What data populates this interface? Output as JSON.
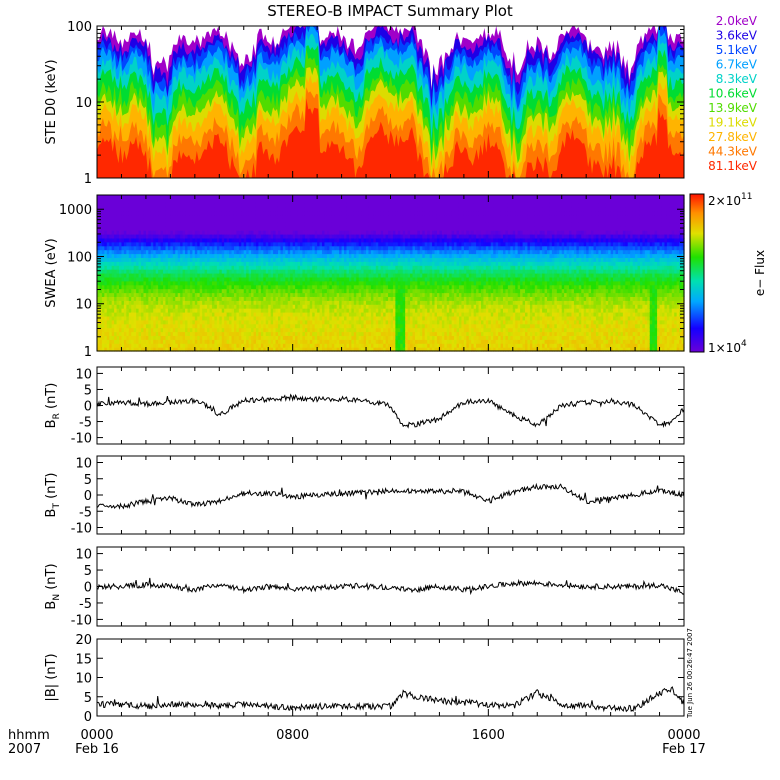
{
  "title": "STEREO-B IMPACT Summary Plot",
  "timestamp": "Tue Jun 26 00:26:47 2007",
  "colorbar": {
    "label": "e− Flux",
    "max_label": "2×10",
    "max_exp": "11",
    "min_label": "1×10",
    "min_exp": "4"
  },
  "x_axis": {
    "row1_label": "hhmm",
    "row2_label": "2007",
    "ticks": [
      "0000",
      "0800",
      "1600",
      "0000"
    ],
    "dates": [
      "Feb 16",
      "",
      "",
      "Feb 17"
    ]
  },
  "chart_data": [
    {
      "type": "line",
      "ylabel": "STE D0 (keV)",
      "yscale": "log",
      "ylim": [
        1,
        100
      ],
      "yticks": [
        "1",
        "10",
        "100"
      ],
      "series": [
        {
          "name": "2.0keV",
          "color": "#a000c8",
          "typical": 60
        },
        {
          "name": "3.6keV",
          "color": "#1e00e6",
          "typical": 48
        },
        {
          "name": "5.1keV",
          "color": "#0046ff",
          "typical": 38
        },
        {
          "name": "6.7keV",
          "color": "#00a0ff",
          "typical": 30
        },
        {
          "name": "8.3keV",
          "color": "#00d2c8",
          "typical": 22
        },
        {
          "name": "10.6keV",
          "color": "#00dc32",
          "typical": 15
        },
        {
          "name": "13.9keV",
          "color": "#50dc00",
          "typical": 10
        },
        {
          "name": "19.1keV",
          "color": "#dcdc00",
          "typical": 7
        },
        {
          "name": "27.8keV",
          "color": "#ffb400",
          "typical": 5
        },
        {
          "name": "44.3keV",
          "color": "#ff7800",
          "typical": 3
        },
        {
          "name": "81.1keV",
          "color": "#ff2800",
          "typical": 1.8
        }
      ]
    },
    {
      "type": "heatmap",
      "ylabel": "SWEA (eV)",
      "yscale": "log",
      "ylim": [
        1,
        2000
      ],
      "yticks": [
        "1",
        "10",
        "100",
        "1000"
      ],
      "zscale": "log",
      "zlim": [
        10000,
        200000000000
      ]
    },
    {
      "type": "line",
      "ylabel": "B_R (nT)",
      "ylim": [
        -12,
        12
      ],
      "yticks": [
        "-10",
        "-5",
        "0",
        "5",
        "10"
      ],
      "x": [
        0,
        1,
        2,
        3,
        4,
        4.5,
        5,
        6,
        7,
        8,
        9,
        10,
        11,
        12,
        12.5,
        13,
        14,
        15,
        16,
        17,
        18,
        19,
        20,
        21,
        22,
        23,
        23.5,
        24
      ],
      "values": [
        0.5,
        1,
        0.5,
        1,
        1.5,
        0,
        -3,
        1.5,
        2,
        2.5,
        2,
        2,
        1.5,
        0,
        -6,
        -6,
        -4,
        1,
        1.5,
        -3,
        -6,
        0,
        1,
        1.5,
        0,
        -6,
        -5,
        -1
      ]
    },
    {
      "type": "line",
      "ylabel": "B_T (nT)",
      "ylim": [
        -12,
        12
      ],
      "yticks": [
        "-10",
        "-5",
        "0",
        "5",
        "10"
      ],
      "x": [
        0,
        1,
        2,
        3,
        4,
        5,
        6,
        7,
        8,
        9,
        10,
        11,
        12,
        13,
        14,
        15,
        16,
        17,
        18,
        19,
        20,
        21,
        22,
        23,
        24
      ],
      "values": [
        -3,
        -3.5,
        -2,
        -1,
        -3,
        -2,
        0.5,
        0.5,
        -0.5,
        0,
        0.5,
        0.8,
        1.5,
        1,
        1,
        1.5,
        -2,
        1,
        2.5,
        2.5,
        -2,
        -1,
        0,
        1.5,
        0
      ]
    },
    {
      "type": "line",
      "ylabel": "B_N (nT)",
      "ylim": [
        -12,
        12
      ],
      "yticks": [
        "-10",
        "-5",
        "0",
        "5",
        "10"
      ],
      "x": [
        0,
        1,
        2,
        3,
        4,
        5,
        6,
        7,
        8,
        9,
        10,
        11,
        12,
        13,
        14,
        15,
        16,
        17,
        18,
        19,
        20,
        21,
        22,
        23,
        24
      ],
      "values": [
        0,
        0,
        0.5,
        0,
        -1,
        0.5,
        -1,
        0,
        -1,
        -0.5,
        0,
        0.5,
        -0.5,
        -1,
        0,
        -1,
        0,
        1,
        1,
        0.5,
        0,
        0,
        0,
        0.5,
        -2
      ]
    },
    {
      "type": "line",
      "ylabel": "|B| (nT)",
      "ylim": [
        0,
        20
      ],
      "yticks": [
        "0",
        "5",
        "10",
        "15",
        "20"
      ],
      "x": [
        0,
        1,
        2,
        3,
        4,
        5,
        6,
        7,
        8,
        9,
        10,
        11,
        12,
        12.5,
        13,
        14,
        15,
        16,
        17,
        18,
        19,
        20,
        21,
        22,
        23,
        23.5,
        24
      ],
      "values": [
        3,
        3,
        2.5,
        3,
        3,
        2.5,
        3,
        2.5,
        2,
        2.5,
        2.5,
        2.5,
        2.5,
        6,
        5,
        4,
        3.5,
        3,
        2.5,
        6,
        3,
        2.5,
        2,
        2,
        6,
        7,
        3
      ]
    }
  ]
}
